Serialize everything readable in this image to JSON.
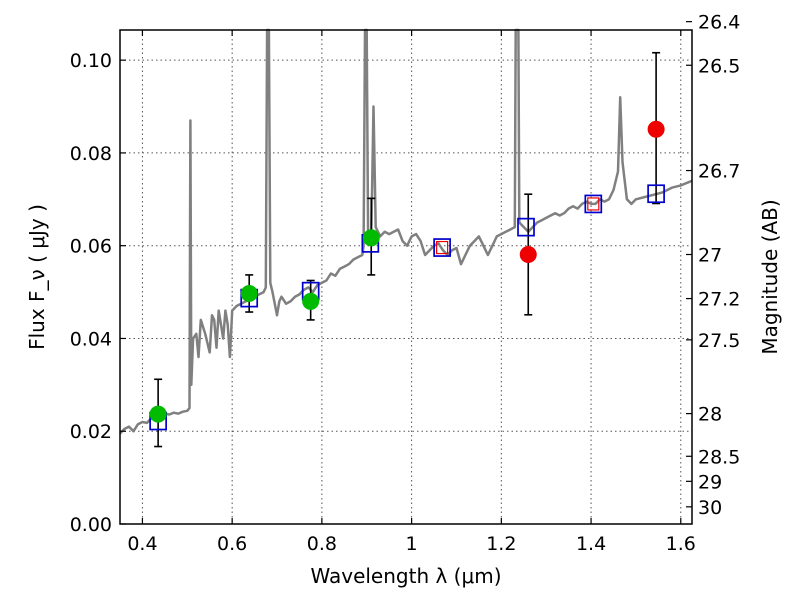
{
  "chart_data": {
    "type": "scatter",
    "xlabel": "Wavelength  λ (μm)",
    "ylabel": "Flux  F_ν  ( μJy )",
    "ylabel_right": "Magnitude (AB)",
    "xlim": [
      0.35,
      1.625
    ],
    "ylim": [
      0.0,
      0.1065
    ],
    "grid": true,
    "x_ticks": [
      {
        "value": 0.4,
        "label": "0.4"
      },
      {
        "value": 0.6,
        "label": "0.6"
      },
      {
        "value": 0.8,
        "label": "0.8"
      },
      {
        "value": 1.0,
        "label": "1"
      },
      {
        "value": 1.2,
        "label": "1.2"
      },
      {
        "value": 1.4,
        "label": "1.4"
      },
      {
        "value": 1.6,
        "label": "1.6"
      }
    ],
    "y_ticks": [
      {
        "value": 0.0,
        "label": "0.00"
      },
      {
        "value": 0.02,
        "label": "0.02"
      },
      {
        "value": 0.04,
        "label": "0.04"
      },
      {
        "value": 0.06,
        "label": "0.06"
      },
      {
        "value": 0.08,
        "label": "0.08"
      },
      {
        "value": 0.1,
        "label": "0.10"
      }
    ],
    "mag_ticks": [
      {
        "value": 0.1083,
        "label": "26.4"
      },
      {
        "value": 0.0989,
        "label": "26.5"
      },
      {
        "value": 0.0762,
        "label": "26.7"
      },
      {
        "value": 0.0581,
        "label": "27"
      },
      {
        "value": 0.0486,
        "label": "27.2"
      },
      {
        "value": 0.0397,
        "label": "27.5"
      },
      {
        "value": 0.0238,
        "label": "28"
      },
      {
        "value": 0.0146,
        "label": "28.5"
      },
      {
        "value": 0.0092,
        "label": "29"
      },
      {
        "value": 0.0037,
        "label": "30"
      }
    ],
    "colors": {
      "spectrum": "#808080",
      "detection": "#00bb00",
      "upper": "#ee0000",
      "model": "#0000cc",
      "model_inner": "#ee0000",
      "errorbar": "#000000",
      "grid": "#555555"
    },
    "spectrum": [
      [
        0.35,
        0.0195
      ],
      [
        0.36,
        0.0205
      ],
      [
        0.37,
        0.021
      ],
      [
        0.38,
        0.02
      ],
      [
        0.39,
        0.0215
      ],
      [
        0.4,
        0.022
      ],
      [
        0.41,
        0.0218
      ],
      [
        0.42,
        0.0228
      ],
      [
        0.43,
        0.0232
      ],
      [
        0.44,
        0.0235
      ],
      [
        0.45,
        0.0238
      ],
      [
        0.46,
        0.0236
      ],
      [
        0.47,
        0.024
      ],
      [
        0.48,
        0.0238
      ],
      [
        0.49,
        0.0242
      ],
      [
        0.5,
        0.0244
      ],
      [
        0.505,
        0.025
      ],
      [
        0.507,
        0.087
      ],
      [
        0.509,
        0.03
      ],
      [
        0.513,
        0.04
      ],
      [
        0.52,
        0.041
      ],
      [
        0.525,
        0.036
      ],
      [
        0.53,
        0.044
      ],
      [
        0.54,
        0.041
      ],
      [
        0.55,
        0.037
      ],
      [
        0.555,
        0.045
      ],
      [
        0.56,
        0.044
      ],
      [
        0.565,
        0.038
      ],
      [
        0.57,
        0.046
      ],
      [
        0.58,
        0.04
      ],
      [
        0.585,
        0.046
      ],
      [
        0.59,
        0.043
      ],
      [
        0.595,
        0.036
      ],
      [
        0.6,
        0.046
      ],
      [
        0.61,
        0.047
      ],
      [
        0.62,
        0.0475
      ],
      [
        0.63,
        0.048
      ],
      [
        0.64,
        0.0485
      ],
      [
        0.65,
        0.049
      ],
      [
        0.66,
        0.0495
      ],
      [
        0.67,
        0.05
      ],
      [
        0.675,
        0.051
      ],
      [
        0.678,
        0.1065
      ],
      [
        0.682,
        0.1065
      ],
      [
        0.685,
        0.052
      ],
      [
        0.69,
        0.05
      ],
      [
        0.7,
        0.045
      ],
      [
        0.705,
        0.048
      ],
      [
        0.71,
        0.049
      ],
      [
        0.72,
        0.0475
      ],
      [
        0.73,
        0.048
      ],
      [
        0.74,
        0.049
      ],
      [
        0.75,
        0.0495
      ],
      [
        0.76,
        0.0505
      ],
      [
        0.77,
        0.051
      ],
      [
        0.78,
        0.05
      ],
      [
        0.79,
        0.0515
      ],
      [
        0.8,
        0.052
      ],
      [
        0.81,
        0.0525
      ],
      [
        0.82,
        0.054
      ],
      [
        0.83,
        0.0535
      ],
      [
        0.84,
        0.055
      ],
      [
        0.85,
        0.0555
      ],
      [
        0.86,
        0.056
      ],
      [
        0.87,
        0.057
      ],
      [
        0.88,
        0.0575
      ],
      [
        0.89,
        0.058
      ],
      [
        0.893,
        0.06
      ],
      [
        0.896,
        0.1065
      ],
      [
        0.9,
        0.1065
      ],
      [
        0.903,
        0.062
      ],
      [
        0.91,
        0.061
      ],
      [
        0.915,
        0.09
      ],
      [
        0.92,
        0.064
      ],
      [
        0.93,
        0.062
      ],
      [
        0.94,
        0.063
      ],
      [
        0.95,
        0.0625
      ],
      [
        0.96,
        0.063
      ],
      [
        0.97,
        0.0635
      ],
      [
        0.98,
        0.061
      ],
      [
        0.99,
        0.06
      ],
      [
        1.0,
        0.062
      ],
      [
        1.01,
        0.0625
      ],
      [
        1.02,
        0.061
      ],
      [
        1.03,
        0.058
      ],
      [
        1.04,
        0.059
      ],
      [
        1.05,
        0.06
      ],
      [
        1.06,
        0.0605
      ],
      [
        1.07,
        0.059
      ],
      [
        1.08,
        0.058
      ],
      [
        1.09,
        0.059
      ],
      [
        1.1,
        0.0595
      ],
      [
        1.11,
        0.056
      ],
      [
        1.12,
        0.058
      ],
      [
        1.13,
        0.06
      ],
      [
        1.14,
        0.061
      ],
      [
        1.15,
        0.062
      ],
      [
        1.16,
        0.06
      ],
      [
        1.17,
        0.058
      ],
      [
        1.18,
        0.06
      ],
      [
        1.19,
        0.062
      ],
      [
        1.2,
        0.0625
      ],
      [
        1.21,
        0.063
      ],
      [
        1.22,
        0.0635
      ],
      [
        1.23,
        0.064
      ],
      [
        1.232,
        0.1065
      ],
      [
        1.238,
        0.1065
      ],
      [
        1.24,
        0.065
      ],
      [
        1.25,
        0.064
      ],
      [
        1.26,
        0.063
      ],
      [
        1.27,
        0.064
      ],
      [
        1.28,
        0.065
      ],
      [
        1.29,
        0.0655
      ],
      [
        1.3,
        0.066
      ],
      [
        1.31,
        0.0665
      ],
      [
        1.32,
        0.067
      ],
      [
        1.33,
        0.0665
      ],
      [
        1.34,
        0.067
      ],
      [
        1.35,
        0.068
      ],
      [
        1.36,
        0.0685
      ],
      [
        1.37,
        0.068
      ],
      [
        1.38,
        0.069
      ],
      [
        1.39,
        0.0695
      ],
      [
        1.4,
        0.069
      ],
      [
        1.41,
        0.069
      ],
      [
        1.42,
        0.07
      ],
      [
        1.43,
        0.0695
      ],
      [
        1.44,
        0.07
      ],
      [
        1.45,
        0.072
      ],
      [
        1.46,
        0.076
      ],
      [
        1.465,
        0.092
      ],
      [
        1.47,
        0.078
      ],
      [
        1.48,
        0.07
      ],
      [
        1.49,
        0.069
      ],
      [
        1.5,
        0.07
      ],
      [
        1.52,
        0.0705
      ],
      [
        1.54,
        0.071
      ],
      [
        1.56,
        0.0715
      ],
      [
        1.58,
        0.0725
      ],
      [
        1.6,
        0.073
      ],
      [
        1.625,
        0.074
      ]
    ],
    "detections": [
      {
        "x": 0.435,
        "y": 0.0237,
        "err_lo": 0.007,
        "err_hi": 0.0075
      },
      {
        "x": 0.638,
        "y": 0.0497,
        "err_lo": 0.004,
        "err_hi": 0.004
      },
      {
        "x": 0.775,
        "y": 0.048,
        "err_lo": 0.004,
        "err_hi": 0.0045
      },
      {
        "x": 0.91,
        "y": 0.0617,
        "err_lo": 0.008,
        "err_hi": 0.0085
      }
    ],
    "upper_points": [
      {
        "x": 1.26,
        "y": 0.0581,
        "err_lo": 0.013,
        "err_hi": 0.013
      },
      {
        "x": 1.545,
        "y": 0.0851,
        "err_lo": 0.016,
        "err_hi": 0.0165
      }
    ],
    "model_points": [
      {
        "x": 0.435,
        "y": 0.0222,
        "inner": false
      },
      {
        "x": 0.638,
        "y": 0.0487,
        "inner": false
      },
      {
        "x": 0.775,
        "y": 0.0502,
        "inner": false
      },
      {
        "x": 0.908,
        "y": 0.0605,
        "inner": false
      },
      {
        "x": 1.068,
        "y": 0.0596,
        "inner": true
      },
      {
        "x": 1.255,
        "y": 0.064,
        "inner": false
      },
      {
        "x": 1.405,
        "y": 0.069,
        "inner": true
      },
      {
        "x": 1.545,
        "y": 0.0712,
        "inner": false
      }
    ]
  }
}
